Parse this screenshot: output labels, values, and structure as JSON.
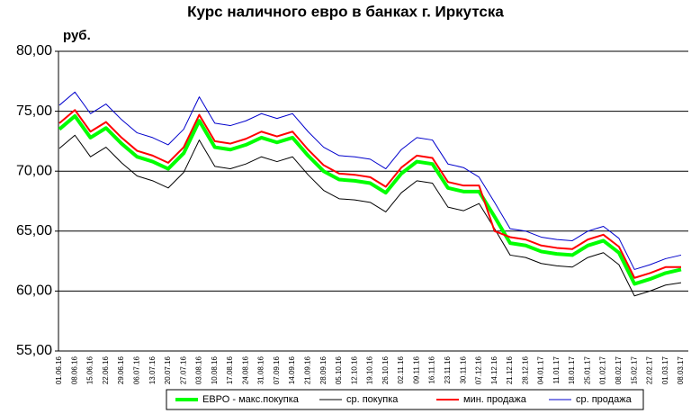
{
  "chart_data": {
    "type": "line",
    "title": "Курс наличного евро в банках г. Иркутска",
    "y_axis_label": "руб.",
    "categories": [
      "01.06.16",
      "08.06.16",
      "15.06.16",
      "22.06.16",
      "29.06.16",
      "06.07.16",
      "13.07.16",
      "20.07.16",
      "27.07.16",
      "03.08.16",
      "10.08.16",
      "17.08.16",
      "24.08.16",
      "31.08.16",
      "07.09.16",
      "14.09.16",
      "21.09.16",
      "28.09.16",
      "05.10.16",
      "12.10.16",
      "19.10.16",
      "26.10.16",
      "02.11.16",
      "09.11.16",
      "16.11.16",
      "23.11.16",
      "30.11.16",
      "07.12.16",
      "14.12.16",
      "21.12.16",
      "28.12.16",
      "04.01.17",
      "11.01.17",
      "18.01.17",
      "25.01.17",
      "01.02.17",
      "08.02.17",
      "15.02.17",
      "22.02.17",
      "01.03.17",
      "08.03.17"
    ],
    "series": [
      {
        "name": "ср. покупка",
        "color": "#000000",
        "width": 1,
        "values": [
          71.9,
          73.0,
          71.2,
          72.0,
          70.7,
          69.6,
          69.2,
          68.6,
          69.9,
          72.6,
          70.4,
          70.2,
          70.6,
          71.2,
          70.8,
          71.2,
          69.7,
          68.4,
          67.7,
          67.6,
          67.4,
          66.6,
          68.2,
          69.2,
          69.0,
          67.0,
          66.7,
          67.3,
          65.2,
          63.0,
          62.8,
          62.3,
          62.1,
          62.0,
          62.8,
          63.2,
          62.2,
          59.6,
          60.0,
          60.5,
          60.7
        ]
      },
      {
        "name": "ср. продажа",
        "color": "#0000cc",
        "width": 1,
        "values": [
          75.5,
          76.6,
          74.8,
          75.6,
          74.3,
          73.2,
          72.8,
          72.2,
          73.5,
          76.2,
          74.0,
          73.8,
          74.2,
          74.8,
          74.4,
          74.8,
          73.3,
          72.0,
          71.3,
          71.2,
          71.0,
          70.2,
          71.8,
          72.8,
          72.6,
          70.6,
          70.3,
          69.5,
          67.4,
          65.2,
          65.0,
          64.5,
          64.3,
          64.2,
          65.0,
          65.4,
          64.4,
          61.8,
          62.2,
          62.7,
          63.0
        ]
      },
      {
        "name": "ЕВРО - макс.покупка",
        "color": "#00ff00",
        "width": 4,
        "values": [
          73.5,
          74.6,
          72.8,
          73.6,
          72.3,
          71.2,
          70.8,
          70.2,
          71.5,
          74.2,
          72.0,
          71.8,
          72.2,
          72.8,
          72.4,
          72.8,
          71.3,
          70.0,
          69.3,
          69.2,
          69.0,
          68.2,
          69.8,
          70.8,
          70.6,
          68.6,
          68.3,
          68.3,
          66.2,
          64.0,
          63.8,
          63.3,
          63.1,
          63.0,
          63.8,
          64.2,
          63.2,
          60.6,
          61.0,
          61.5,
          61.8
        ]
      },
      {
        "name": "мин. продажа",
        "color": "#ff0000",
        "width": 2,
        "values": [
          74.0,
          75.1,
          73.3,
          74.1,
          72.8,
          71.7,
          71.3,
          70.7,
          72.0,
          74.7,
          72.5,
          72.3,
          72.7,
          73.3,
          72.9,
          73.3,
          71.8,
          70.5,
          69.8,
          69.7,
          69.5,
          68.7,
          70.3,
          71.3,
          71.1,
          69.1,
          68.8,
          68.8,
          65.0,
          64.5,
          64.3,
          63.8,
          63.6,
          63.5,
          64.3,
          64.7,
          63.7,
          61.1,
          61.5,
          62.0,
          62.0
        ]
      }
    ],
    "legend_order": [
      2,
      0,
      3,
      1
    ],
    "ylim": [
      55,
      80
    ],
    "yticks": [
      {
        "value": 55,
        "label": "55,00"
      },
      {
        "value": 60,
        "label": "60,00"
      },
      {
        "value": 65,
        "label": "65,00"
      },
      {
        "value": 70,
        "label": "70,00"
      },
      {
        "value": 75,
        "label": "75,00"
      },
      {
        "value": 80,
        "label": "80,00"
      }
    ],
    "grid": true,
    "legend": "bottom"
  }
}
